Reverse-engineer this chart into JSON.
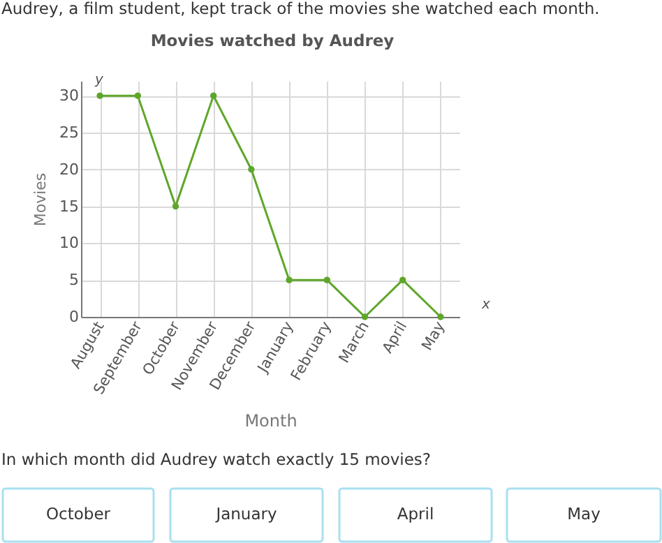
{
  "chart_data": {
    "type": "line",
    "title": "Movies watched by Audrey",
    "xlabel": "Month",
    "ylabel": "Movies",
    "categories": [
      "August",
      "September",
      "October",
      "November",
      "December",
      "January",
      "February",
      "March",
      "April",
      "May"
    ],
    "series": [
      {
        "color": "#5ea629",
        "values": [
          30,
          30,
          15,
          30,
          20,
          5,
          5,
          0,
          5,
          0
        ]
      }
    ],
    "ylim": [
      0,
      32
    ],
    "yticks": [
      0,
      5,
      10,
      15,
      20,
      25,
      30
    ],
    "grid": true,
    "marker": "circle",
    "line_style": "solid",
    "annotations": [
      "Audrey, a film student, kept track of the movies she watched each month.",
      "In which month did Audrey watch exactly 15 movies?",
      "October",
      "January",
      "April",
      "May",
      "y",
      "x"
    ]
  }
}
